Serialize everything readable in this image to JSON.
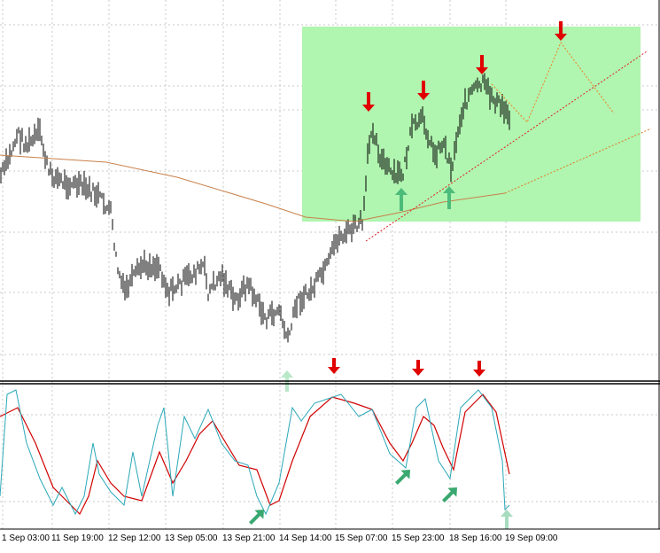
{
  "x_axis": {
    "labels": [
      "1 Sep 03:00",
      "11 Sep 19:00",
      "12 Sep 12:00",
      "13 Sep 05:00",
      "13 Sep 21:00",
      "14 Sep 14:00",
      "15 Sep 07:00",
      "15 Sep 23:00",
      "18 Sep 16:00",
      "19 Sep 09:00"
    ]
  }
}
